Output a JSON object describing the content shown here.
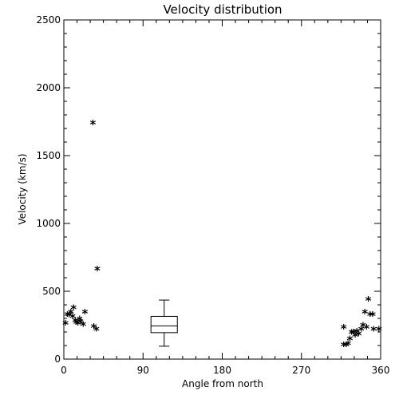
{
  "chart_data": {
    "type": "scatter",
    "title": "Velocity distribution",
    "xlabel": "Angle from north",
    "ylabel": "Velocity (km/s)",
    "xlim": [
      0,
      360
    ],
    "ylim": [
      0,
      2500
    ],
    "x_ticks": [
      0,
      90,
      180,
      270,
      360
    ],
    "y_ticks": [
      0,
      500,
      1000,
      1500,
      2000,
      2500
    ],
    "x_tick_labels": [
      "0",
      "90",
      "180",
      "270",
      "360"
    ],
    "y_tick_labels": [
      "0",
      "500",
      "1000",
      "1500",
      "2000",
      "2500"
    ],
    "grid": false,
    "legend": "none",
    "marker": "*",
    "color": "#000000",
    "points": [
      {
        "x": 2,
        "y": 260
      },
      {
        "x": 4,
        "y": 325
      },
      {
        "x": 6,
        "y": 320
      },
      {
        "x": 8,
        "y": 340
      },
      {
        "x": 10,
        "y": 310
      },
      {
        "x": 11,
        "y": 375
      },
      {
        "x": 13,
        "y": 280
      },
      {
        "x": 14,
        "y": 265
      },
      {
        "x": 16,
        "y": 260
      },
      {
        "x": 18,
        "y": 290
      },
      {
        "x": 19,
        "y": 270
      },
      {
        "x": 22,
        "y": 250
      },
      {
        "x": 24,
        "y": 340
      },
      {
        "x": 33,
        "y": 1735
      },
      {
        "x": 34,
        "y": 235
      },
      {
        "x": 37,
        "y": 215
      },
      {
        "x": 38,
        "y": 660
      },
      {
        "x": 318,
        "y": 230
      },
      {
        "x": 318,
        "y": 100
      },
      {
        "x": 321,
        "y": 100
      },
      {
        "x": 323,
        "y": 110
      },
      {
        "x": 325,
        "y": 145
      },
      {
        "x": 327,
        "y": 190
      },
      {
        "x": 329,
        "y": 195
      },
      {
        "x": 331,
        "y": 170
      },
      {
        "x": 333,
        "y": 200
      },
      {
        "x": 335,
        "y": 180
      },
      {
        "x": 338,
        "y": 215
      },
      {
        "x": 340,
        "y": 245
      },
      {
        "x": 342,
        "y": 340
      },
      {
        "x": 344,
        "y": 230
      },
      {
        "x": 346,
        "y": 435
      },
      {
        "x": 348,
        "y": 325
      },
      {
        "x": 351,
        "y": 325
      },
      {
        "x": 352,
        "y": 215
      },
      {
        "x": 358,
        "y": 215
      }
    ],
    "boxplot": {
      "center_x": 114,
      "half_width": 15,
      "cap_half_width": 6,
      "min": 95,
      "q1": 195,
      "median": 245,
      "q3": 315,
      "max": 435
    }
  }
}
